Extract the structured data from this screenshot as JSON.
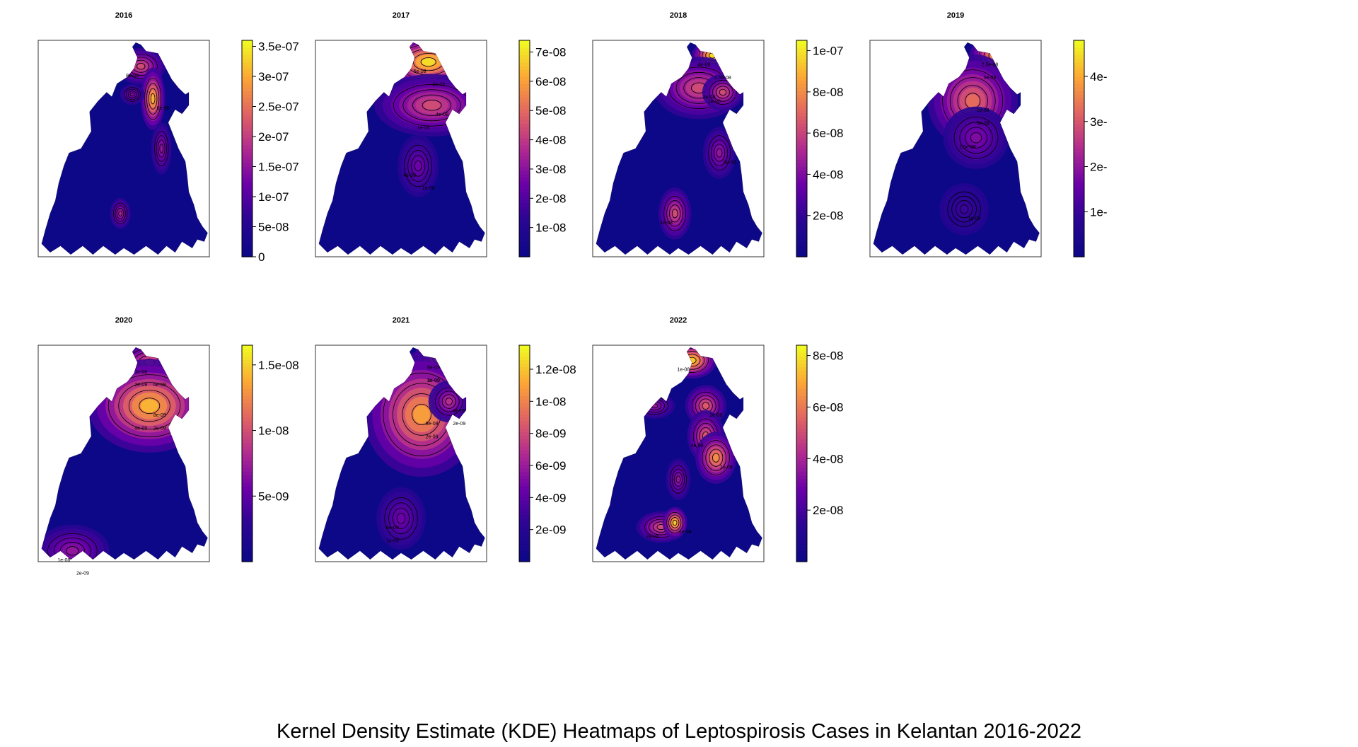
{
  "figure_caption": "Kernel Density Estimate (KDE) Heatmaps of Leptospirosis Cases in Kelantan 2016-2022",
  "palette": [
    "#0d0887",
    "#2a0593",
    "#6a00a8",
    "#b12a90",
    "#e16462",
    "#fca636",
    "#f0f921"
  ],
  "chart_data": [
    {
      "type": "heatmap",
      "title": "2016",
      "colorbar_ticks": [
        "0",
        "5e-08",
        "1e-07",
        "1.5e-07",
        "2e-07",
        "2.5e-07",
        "3e-07",
        "3.5e-07"
      ],
      "colorbar_values": [
        0,
        5e-08,
        1e-07,
        1.5e-07,
        2e-07,
        2.5e-07,
        3e-07,
        3.5e-07
      ],
      "zlim": [
        0,
        3.6e-07
      ],
      "contour_labels": [
        "8e-08",
        "6e-08"
      ]
    },
    {
      "type": "heatmap",
      "title": "2017",
      "colorbar_ticks": [
        "1e-08",
        "2e-08",
        "3e-08",
        "4e-08",
        "5e-08",
        "6e-08",
        "7e-08"
      ],
      "colorbar_values": [
        1e-08,
        2e-08,
        3e-08,
        4e-08,
        5e-08,
        6e-08,
        7e-08
      ],
      "zlim": [
        0,
        7.4e-08
      ],
      "contour_labels": [
        "6e-08",
        "4e-08",
        "4e-08",
        "3e-08",
        "1e-08",
        "1e-08"
      ]
    },
    {
      "type": "heatmap",
      "title": "2018",
      "colorbar_ticks": [
        "2e-08",
        "4e-08",
        "6e-08",
        "8e-08",
        "1e-07"
      ],
      "colorbar_values": [
        2e-08,
        4e-08,
        6e-08,
        8e-08,
        1e-07
      ],
      "zlim": [
        0,
        1.05e-07
      ],
      "contour_labels": [
        "4e-08",
        "2e-08",
        "1e-08",
        "3e-08",
        "1e-08",
        "1.5e-08"
      ]
    },
    {
      "type": "heatmap",
      "title": "2019",
      "colorbar_ticks": [
        "1e-",
        "2e-",
        "3e-",
        "4e-"
      ],
      "colorbar_values": [
        1,
        2,
        3,
        4
      ],
      "zlim": [
        0,
        4.8
      ],
      "contour_labels": [
        "2.5e-08",
        "1e-08",
        "1.5e-08",
        "1e-08",
        "5e-09",
        "5e-09"
      ]
    },
    {
      "type": "heatmap",
      "title": "2020",
      "colorbar_ticks": [
        "5e-09",
        "1e-08",
        "1.5e-08"
      ],
      "colorbar_values": [
        5e-09,
        1e-08,
        1.5e-08
      ],
      "zlim": [
        0,
        1.65e-08
      ],
      "contour_labels": [
        "1e-08",
        "8e-09",
        "1e-08",
        "6e-09",
        "4e-09",
        "2e-09",
        "2e-09",
        "2e-09"
      ]
    },
    {
      "type": "heatmap",
      "title": "2021",
      "colorbar_ticks": [
        "2e-09",
        "4e-09",
        "6e-09",
        "8e-09",
        "1e-08",
        "1.2e-08"
      ],
      "colorbar_values": [
        2e-09,
        4e-09,
        6e-09,
        8e-09,
        1e-08,
        1.2e-08
      ],
      "zlim": [
        0,
        1.35e-08
      ],
      "contour_labels": [
        "8e-09",
        "6e-09",
        "6e-09",
        "4e-09",
        "3e-09",
        "2e-09",
        "1e-09",
        "2e-09",
        "1e-09"
      ]
    },
    {
      "type": "heatmap",
      "title": "2022",
      "colorbar_ticks": [
        "2e-08",
        "4e-08",
        "6e-08",
        "8e-08"
      ],
      "colorbar_values": [
        2e-08,
        4e-08,
        6e-08,
        8e-08
      ],
      "zlim": [
        0,
        8.4e-08
      ],
      "contour_labels": [
        "1e-08",
        "2e-08",
        "4e-08",
        "1e-08",
        "2e-08",
        "1e-08"
      ]
    }
  ]
}
